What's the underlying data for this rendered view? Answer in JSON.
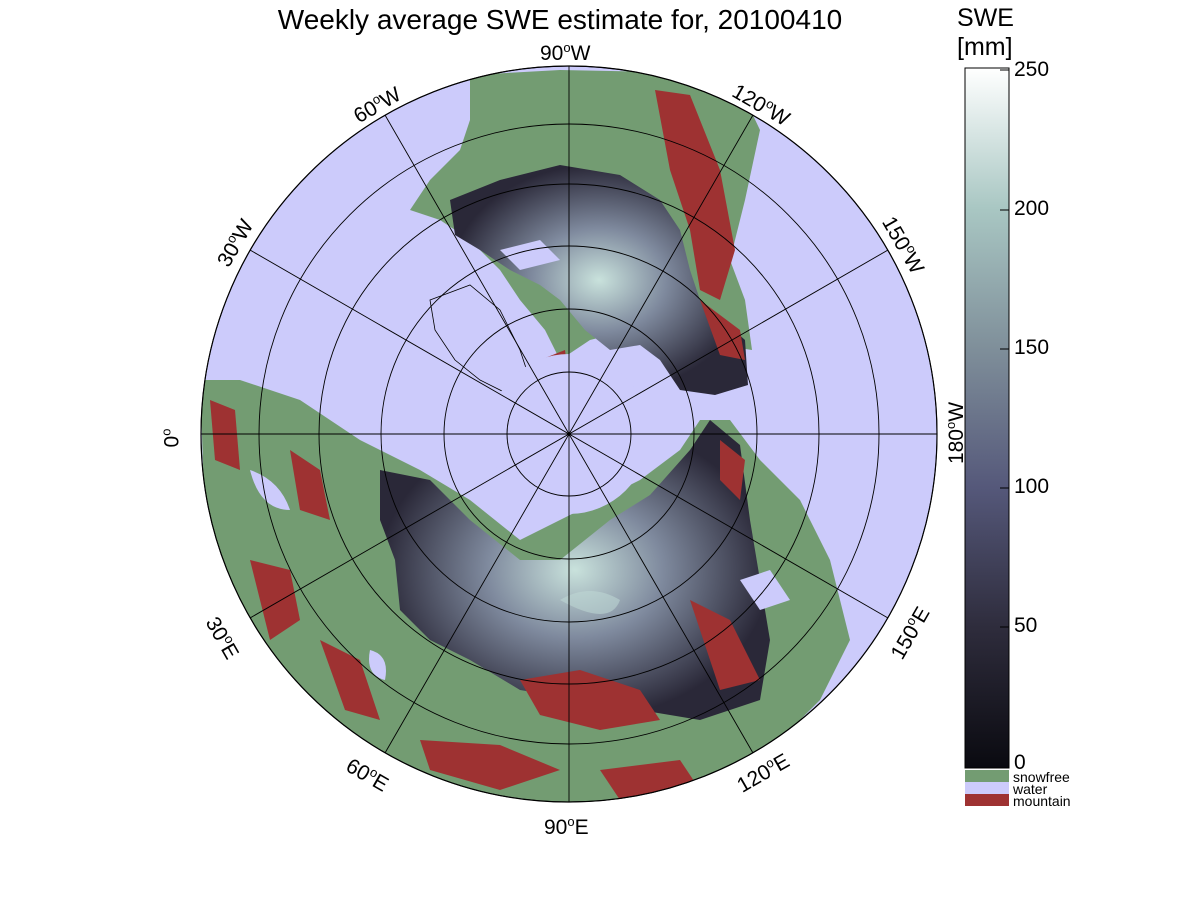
{
  "title": "Weekly average SWE estimate for, 20100410",
  "colorbar": {
    "title_line1": "SWE",
    "title_line2": "[mm]",
    "ticks": [
      "250",
      "200",
      "150",
      "100",
      "50",
      "0"
    ],
    "tick_values": [
      250,
      200,
      150,
      100,
      50,
      0
    ],
    "range": [
      0,
      250
    ],
    "gradient": [
      "#0a0a10",
      "#2e2c3c",
      "#55587a",
      "#7f8f9a",
      "#a9c7c3",
      "#ffffff"
    ]
  },
  "categories": [
    {
      "label": "snowfree",
      "color": "#739c72"
    },
    {
      "label": "water",
      "color": "#cccbfb"
    },
    {
      "label": "mountain",
      "color": "#9e3232"
    }
  ],
  "graticule": {
    "meridian_labels": [
      {
        "deg": "90",
        "hemi": "W"
      },
      {
        "deg": "120",
        "hemi": "W"
      },
      {
        "deg": "150",
        "hemi": "W"
      },
      {
        "deg": "180",
        "hemi": "W"
      },
      {
        "deg": "150",
        "hemi": "E"
      },
      {
        "deg": "120",
        "hemi": "E"
      },
      {
        "deg": "90",
        "hemi": "E"
      },
      {
        "deg": "60",
        "hemi": "E"
      },
      {
        "deg": "30",
        "hemi": "E"
      },
      {
        "deg": "0",
        "hemi": ""
      },
      {
        "deg": "30",
        "hemi": "W"
      },
      {
        "deg": "60",
        "hemi": "W"
      }
    ],
    "degree_symbol": "o"
  },
  "colors": {
    "water": "#cccbfb",
    "snowfree": "#739c72",
    "mountain": "#9e3232",
    "graticule": "#000000"
  }
}
